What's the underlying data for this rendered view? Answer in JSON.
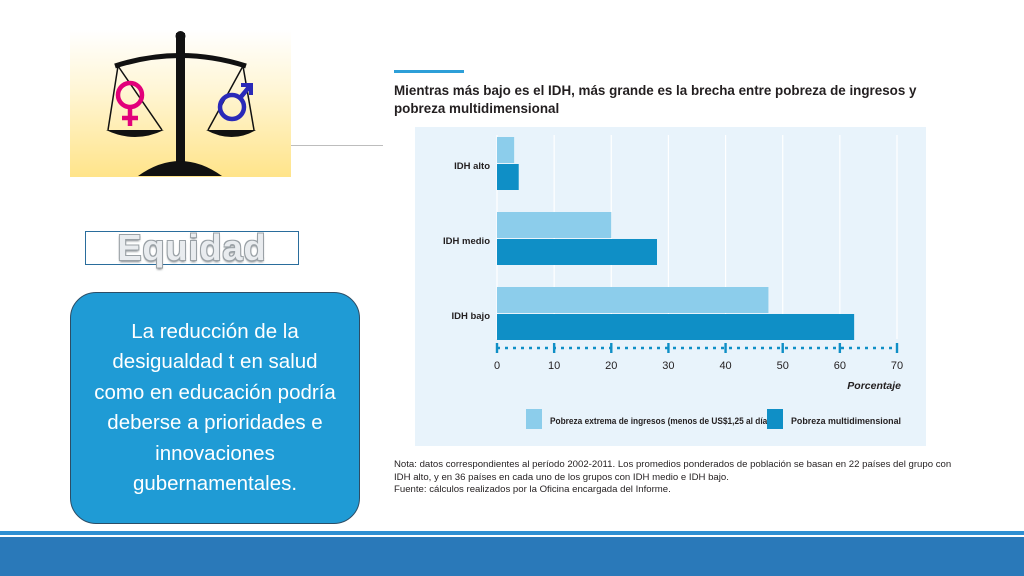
{
  "slide": {
    "heading_word": "Equidad",
    "callout_text": "La reducción de la desigualdad t en salud como en educación podría deberse a prioridades e innovaciones gubernamentales.",
    "colors": {
      "accent_blue": "#1f9bd5",
      "footer_blue": "#2a79b9",
      "series_light": "#8ccdeb",
      "series_dark": "#0f8fc6"
    },
    "logo": {
      "female_icon": "female-symbol-icon",
      "male_icon": "male-symbol-icon",
      "scale_icon": "balance-scale-icon"
    }
  },
  "chart_data": {
    "type": "bar",
    "orientation": "horizontal",
    "title": "Mientras más bajo es el IDH, más grande es la brecha entre pobreza de ingresos y pobreza multidimensional",
    "categories": [
      "IDH alto",
      "IDH medio",
      "IDH bajo"
    ],
    "series": [
      {
        "name": "Pobreza extrema de ingresos (menos de US$1,25 al día)",
        "values": [
          3,
          20,
          47.5
        ],
        "color": "#8ccdeb"
      },
      {
        "name": "Pobreza multidimensional",
        "values": [
          3.8,
          28,
          62.5
        ],
        "color": "#0f8fc6"
      }
    ],
    "xlabel": "Porcentaje",
    "ylabel": "",
    "xlim": [
      0,
      70
    ],
    "xticks": [
      "0",
      "10",
      "20",
      "30",
      "40",
      "50",
      "60",
      "70"
    ],
    "grid": true,
    "legend_position": "bottom",
    "note": "Nota: datos correspondientes al período 2002-2011. Los promedios ponderados de población se basan en 22 países del grupo con IDH alto, y en 36 países en cada uno de los grupos con IDH medio e IDH bajo.",
    "source": "Fuente: cálculos realizados por la Oficina encargada del Informe."
  }
}
